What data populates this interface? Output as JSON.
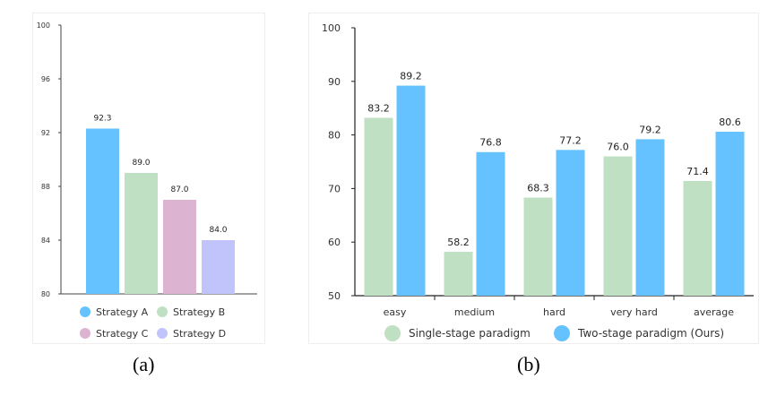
{
  "captions": {
    "a": "(a)",
    "b": "(b)"
  },
  "colors": {
    "strategy_a": "#66c2ff",
    "strategy_b": "#bfe0c2",
    "strategy_c": "#dcb4d2",
    "strategy_d": "#c0c4fb",
    "single_stage": "#bfe0c2",
    "two_stage": "#66c2ff"
  },
  "chart_data": [
    {
      "type": "bar",
      "categories": [
        "Strategy A",
        "Strategy B",
        "Strategy C",
        "Strategy D"
      ],
      "values": [
        92.3,
        89.0,
        87.0,
        84.0
      ],
      "value_labels": [
        "92.3",
        "89.0",
        "87.0",
        "84.0"
      ],
      "ylim": [
        80,
        100
      ],
      "yticks": [
        "80",
        "84",
        "88",
        "92",
        "96",
        "100"
      ],
      "legend": [
        "Strategy A",
        "Strategy B",
        "Strategy C",
        "Strategy D"
      ],
      "legend_position": "bottom",
      "grid": false
    },
    {
      "type": "bar",
      "categories": [
        "easy",
        "medium",
        "hard",
        "very hard",
        "average"
      ],
      "series": [
        {
          "name": "Single-stage paradigm",
          "values": [
            83.2,
            58.2,
            68.3,
            76.0,
            71.4
          ],
          "value_labels": [
            "83.2",
            "58.2",
            "68.3",
            "76.0",
            "71.4"
          ]
        },
        {
          "name": "Two-stage paradigm (Ours)",
          "values": [
            89.2,
            76.8,
            77.2,
            79.2,
            80.6
          ],
          "value_labels": [
            "89.2",
            "76.8",
            "77.2",
            "79.2",
            "80.6"
          ]
        }
      ],
      "ylim": [
        50,
        100
      ],
      "yticks": [
        "50",
        "60",
        "70",
        "80",
        "90",
        "100"
      ],
      "legend_position": "bottom",
      "grid": false
    }
  ]
}
